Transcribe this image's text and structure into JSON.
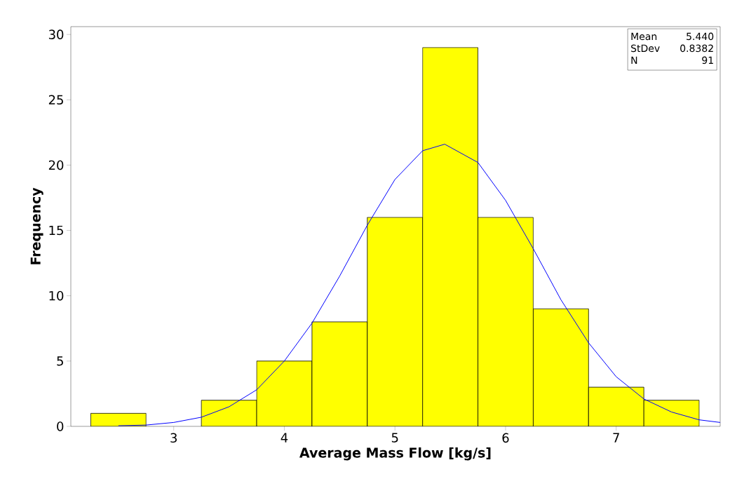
{
  "chart_data": {
    "type": "histogram",
    "xlabel": "Average Mass Flow [kg/s]",
    "ylabel": "Frequency",
    "bins": [
      2.25,
      2.75,
      3.25,
      3.75,
      4.25,
      4.75,
      5.25,
      5.75,
      6.25,
      6.75,
      7.25,
      7.75
    ],
    "values": [
      1,
      0,
      2,
      5,
      8,
      16,
      29,
      16,
      9,
      3,
      2
    ],
    "color": "#ffff00",
    "series": [
      {
        "type": "line",
        "color": "#0000ff",
        "x": [
          2.5,
          2.75,
          3.0,
          3.25,
          3.5,
          3.75,
          4.0,
          4.25,
          4.5,
          4.75,
          5.0,
          5.25,
          5.45,
          5.75,
          6.0,
          6.25,
          6.5,
          6.75,
          7.0,
          7.25,
          7.5,
          7.75,
          7.94
        ],
        "values": [
          0.05,
          0.1,
          0.3,
          0.7,
          1.5,
          2.8,
          5.0,
          7.9,
          11.5,
          15.4,
          18.9,
          21.1,
          21.6,
          20.2,
          17.3,
          13.6,
          9.7,
          6.4,
          3.8,
          2.1,
          1.1,
          0.5,
          0.3
        ]
      }
    ],
    "xlim": [
      2.07,
      7.94
    ],
    "ylim": [
      0,
      30.6
    ],
    "xticks": [
      3,
      4,
      5,
      6,
      7
    ],
    "yticks": [
      0,
      5,
      10,
      15,
      20,
      25,
      30
    ],
    "grid": false,
    "annotations": [
      "Mean",
      "5.440",
      "StDev",
      "0.8382",
      "N",
      "91"
    ]
  }
}
